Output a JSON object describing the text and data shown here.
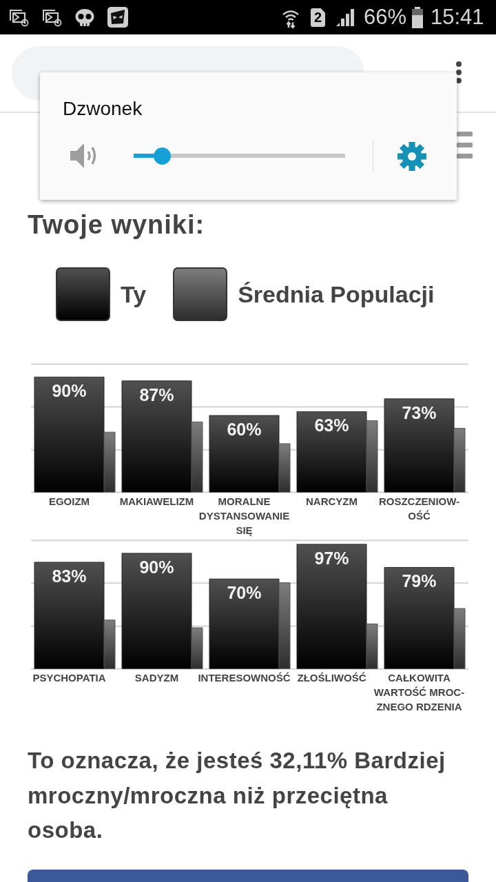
{
  "chart_data": [
    {
      "type": "bar",
      "title": "Twoje wyniki:",
      "categories": [
        "EGOIZM",
        "MAKIAWELIZM",
        "MORALNE DYSTANSOWANIE SIĘ",
        "NARCYZM",
        "ROSZCZENIOW-OŚĆ"
      ],
      "series": [
        {
          "name": "Ty",
          "color": "#282828",
          "values": [
            90,
            87,
            60,
            63,
            73
          ],
          "value_labels": [
            "90%",
            "87%",
            "60%",
            "63%",
            "73%"
          ]
        },
        {
          "name": "Średnia Populacji",
          "color": "#555555",
          "values": [
            47,
            55,
            38,
            56,
            50
          ]
        }
      ],
      "ylim": [
        0,
        100
      ],
      "yticks": [
        {
          "value": 33.3,
          "label": null
        },
        {
          "value": 66.7,
          "label": null
        },
        {
          "value": 100,
          "label": null
        }
      ],
      "grid": "y",
      "tick_labels": "x",
      "legend": "top",
      "annotations": [
        "Dzwonek",
        "66%",
        "15:41",
        "2"
      ]
    },
    {
      "type": "bar",
      "categories": [
        "PSYCHOPATIA",
        "SADYZM",
        "INTERESOWNOŚĆ",
        "ZŁOŚLIWOŚĆ",
        "CAŁKOWITA WARTOŚĆ MROC-ZNEGO RDZENIA"
      ],
      "series": [
        {
          "color": "#282828",
          "values": [
            83,
            90,
            70,
            97,
            79
          ],
          "value_labels": [
            "83%",
            "90%",
            "70%",
            "97%",
            "79%"
          ]
        },
        {
          "color": "#555555",
          "values": [
            38,
            32,
            67,
            35,
            47
          ]
        }
      ],
      "ylim": [
        0,
        100
      ],
      "yticks": [
        {
          "value": 33.3,
          "label": null
        },
        {
          "value": 66.7,
          "label": null
        },
        {
          "value": 100,
          "label": null
        }
      ],
      "grid": "y",
      "tick_labels": "x",
      "annotations": [
        "To oznacza, że jesteś 32,11% Bardziej mroczny/mroczna niż przeciętna osoba."
      ]
    }
  ]
}
